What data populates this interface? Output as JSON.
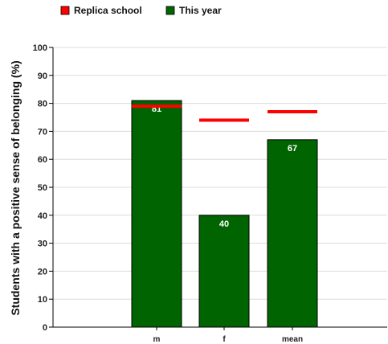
{
  "chart_data": {
    "type": "bar",
    "title": "",
    "xlabel": "",
    "ylabel": "Students with a positive sense of belonging (%)",
    "categories": [
      "m",
      "f",
      "mean"
    ],
    "ylim": [
      0,
      100
    ],
    "yticks": [
      0,
      10,
      20,
      30,
      40,
      50,
      60,
      70,
      80,
      90,
      100
    ],
    "series": [
      {
        "name": "This year",
        "type": "bar",
        "color": "#006400",
        "values": [
          81,
          40,
          67
        ],
        "labels": [
          "81",
          "40",
          "67"
        ]
      },
      {
        "name": "Replica school",
        "type": "marker",
        "color": "#ff0000",
        "values": [
          79,
          74,
          77
        ]
      }
    ],
    "legend": {
      "placement": "top-left",
      "entries": [
        "Replica school",
        "This year"
      ]
    },
    "grid": true
  }
}
